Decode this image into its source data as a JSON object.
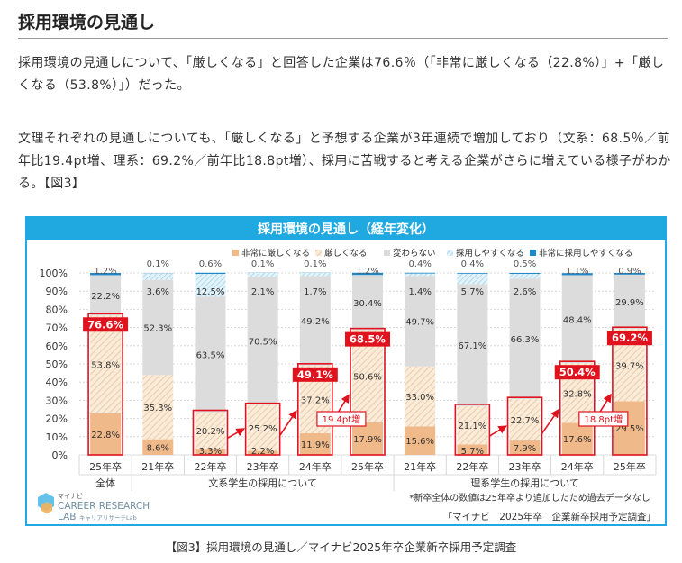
{
  "heading": "採用環境の見通し",
  "paragraphs": [
    "採用環境の見通しについて、「厳しくなる」と回答した企業は76.6％（「非常に厳しくなる（22.8%）」+「厳しくなる（53.8%）」）だった。",
    "文理それぞれの見通しについても、「厳しくなる」と予想する企業が3年連続で増加しており（文系：68.5％／前年比19.4pt増、理系：69.2%／前年比18.8pt増）、採用に苦戦すると考える企業がさらに増えている様子がわかる。【図3】"
  ],
  "caption": "【図3】採用環境の見通し／マイナビ2025年卒企業新卒採用予定調査",
  "colors": {
    "accent": "#20a8e0",
    "very_hard": "#f0b98a",
    "hard": "#faecd9",
    "hard_hatch": "#e6c29c",
    "no_change": "#dcdcdc",
    "easier": "#cfe8f3",
    "much_easier": "#1e88c8",
    "highlight": "#e0121d"
  },
  "chart_data": {
    "type": "bar",
    "stacked": true,
    "title": "採用環境の見通し（経年変化）",
    "ylim": [
      0,
      100
    ],
    "yticks": [
      "0%",
      "10%",
      "20%",
      "30%",
      "40%",
      "50%",
      "60%",
      "70%",
      "80%",
      "90%",
      "100%"
    ],
    "categories": [
      "25年卒",
      "21年卒",
      "22年卒",
      "23年卒",
      "24年卒",
      "25年卒",
      "21年卒",
      "22年卒",
      "23年卒",
      "24年卒",
      "25年卒"
    ],
    "groups": [
      {
        "label": "全体",
        "span": [
          0,
          0
        ]
      },
      {
        "label": "文系学生の採用について",
        "span": [
          1,
          5
        ]
      },
      {
        "label": "理系学生の採用について",
        "span": [
          6,
          10
        ]
      }
    ],
    "series": [
      {
        "name": "非常に厳しくなる",
        "values": [
          22.8,
          8.6,
          3.3,
          2.2,
          11.9,
          17.9,
          15.6,
          5.7,
          7.9,
          17.6,
          29.5
        ]
      },
      {
        "name": "厳しくなる",
        "values": [
          53.8,
          35.3,
          20.2,
          25.2,
          37.2,
          50.6,
          33.0,
          21.1,
          22.7,
          32.8,
          39.7
        ]
      },
      {
        "name": "変わらない",
        "values": [
          22.2,
          52.3,
          63.5,
          70.5,
          49.2,
          30.4,
          49.7,
          67.1,
          66.3,
          48.4,
          29.9
        ]
      },
      {
        "name": "採用しやすくなる",
        "values": [
          null,
          3.6,
          12.5,
          2.1,
          1.7,
          null,
          1.4,
          5.7,
          2.6,
          null,
          null
        ]
      },
      {
        "name": "非常に採用しやすくなる",
        "values": [
          1.2,
          0.1,
          0.6,
          0.1,
          0.1,
          1.2,
          0.4,
          0.4,
          0.5,
          1.1,
          0.9
        ]
      }
    ],
    "totals": [
      {
        "index": 0,
        "label": "76.6%"
      },
      {
        "index": 4,
        "label": "49.1%"
      },
      {
        "index": 5,
        "label": "68.5%"
      },
      {
        "index": 9,
        "label": "50.4%"
      },
      {
        "index": 10,
        "label": "69.2%"
      }
    ],
    "outlined": [
      0,
      2,
      3,
      4,
      5,
      7,
      8,
      9,
      10
    ],
    "annotations": [
      {
        "label": "19.4pt増",
        "from": 4,
        "to": 5
      },
      {
        "label": "18.8pt増",
        "from": 9,
        "to": 10
      }
    ],
    "note": "*新卒全体の数値は25年卒より追加したため過去データなし",
    "source": "「マイナビ　2025年卒　企業新卒採用予定調査」",
    "logo": {
      "top": "マイナビ",
      "line1": "CAREER RESEARCH",
      "line2": "LAB",
      "sub": "キャリアリサーチLab"
    }
  }
}
